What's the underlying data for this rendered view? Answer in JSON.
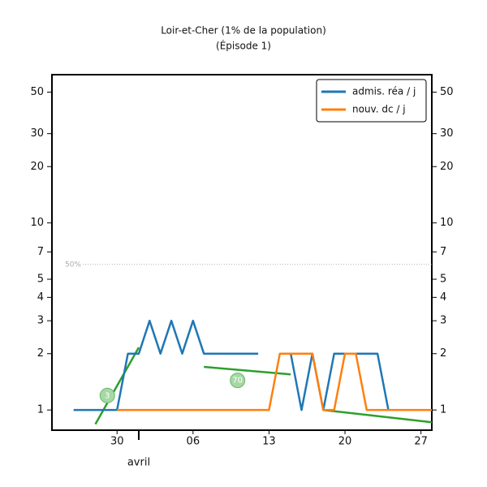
{
  "chart_data": {
    "type": "line",
    "title": "Loir-et-Cher (1% de la population)",
    "subtitle": "(Épisode 1)",
    "log_scale": true,
    "xlim": [
      "03-24",
      "04-28"
    ],
    "xticks": [
      {
        "value": "03-30",
        "label": "30"
      },
      {
        "value": "04-06",
        "label": "06"
      },
      {
        "value": "04-13",
        "label": "13"
      },
      {
        "value": "04-20",
        "label": "20"
      },
      {
        "value": "04-27",
        "label": "27"
      }
    ],
    "month_label": {
      "value": "04-01",
      "label": "avril"
    },
    "ylim": [
      0.78,
      62
    ],
    "yticks": [
      1,
      2,
      3,
      4,
      5,
      7,
      10,
      20,
      30,
      50
    ],
    "reference_line": {
      "value": 6,
      "label": "50%"
    },
    "legend": "upper right",
    "series": [
      {
        "name": "admis. réa / j",
        "color": "#1f77b4",
        "x": [
          "03-26",
          "03-27",
          "03-28",
          "03-29",
          "03-30",
          "03-31",
          "04-01",
          "04-02",
          "04-03",
          "04-04",
          "04-05",
          "04-06",
          "04-07",
          "04-08",
          "04-09",
          "04-10",
          "04-11",
          "04-12",
          "04-13",
          "04-14",
          "04-15",
          "04-16",
          "04-17",
          "04-18",
          "04-19",
          "04-20",
          "04-21",
          "04-22",
          "04-23",
          "04-24"
        ],
        "values": [
          1,
          1,
          1,
          1,
          1,
          2,
          2,
          3,
          2,
          3,
          2,
          3,
          2,
          2,
          2,
          2,
          2,
          2,
          null,
          null,
          2,
          1,
          2,
          1,
          2,
          2,
          2,
          2,
          2,
          1
        ]
      },
      {
        "name": "nouv. dc / j",
        "color": "#ff7f0e",
        "x": [
          "03-30",
          "03-31",
          "04-01",
          "04-02",
          "04-03",
          "04-04",
          "04-05",
          "04-06",
          "04-07",
          "04-08",
          "04-09",
          "04-10",
          "04-11",
          "04-12",
          "04-13",
          "04-14",
          "04-15",
          "04-16",
          "04-17",
          "04-18",
          "04-19",
          "04-20",
          "04-21",
          "04-22",
          "04-23",
          "04-24",
          "04-25",
          "04-26",
          "04-27",
          "04-28"
        ],
        "values": [
          1,
          1,
          1,
          1,
          1,
          1,
          1,
          1,
          1,
          1,
          1,
          1,
          1,
          1,
          1,
          2,
          2,
          2,
          2,
          1,
          1,
          2,
          2,
          1,
          1,
          1,
          1,
          1,
          1,
          1
        ]
      }
    ],
    "fits": [
      {
        "label": "3",
        "color": "#2ca02c",
        "x": [
          "03-28",
          "04-01"
        ],
        "values": [
          0.84,
          2.16
        ]
      },
      {
        "label": "70",
        "color": "#2ca02c",
        "x": [
          "04-07",
          "04-15"
        ],
        "values": [
          1.7,
          1.55
        ]
      },
      {
        "color": "#2ca02c",
        "x": [
          "04-18",
          "04-28"
        ],
        "values": [
          1,
          0.86
        ]
      }
    ]
  }
}
